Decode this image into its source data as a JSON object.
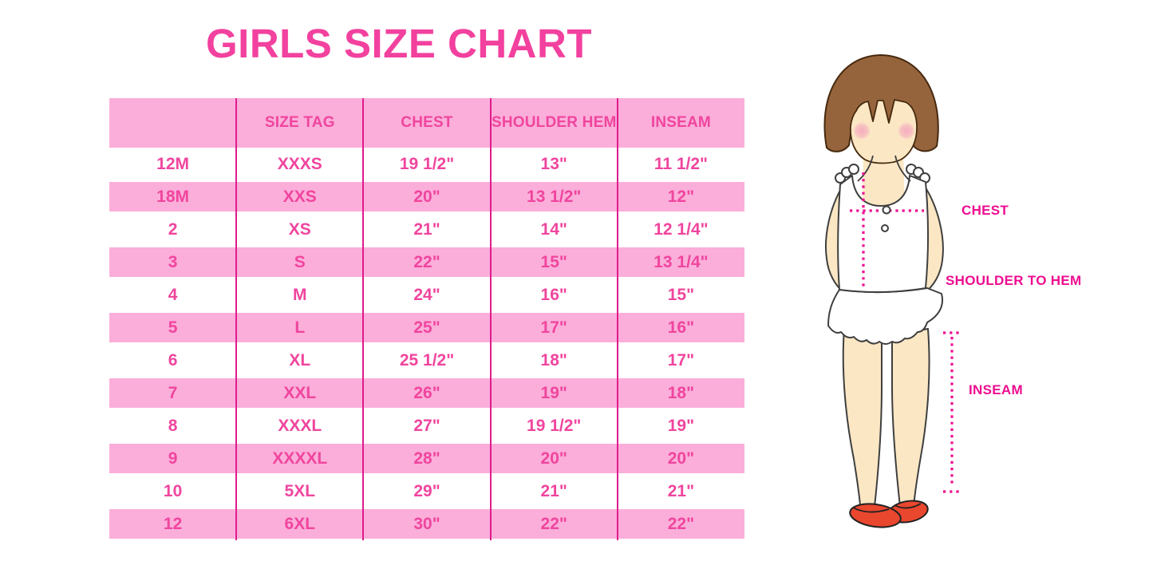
{
  "chart_data": {
    "type": "table",
    "title": "GIRLS SIZE CHART",
    "columns": [
      "",
      "SIZE TAG",
      "CHEST",
      "SHOULDER HEM",
      "INSEAM"
    ],
    "rows": [
      [
        "12M",
        "XXXS",
        "19 1/2\"",
        "13\"",
        "11 1/2\""
      ],
      [
        "18M",
        "XXS",
        "20\"",
        "13 1/2\"",
        "12\""
      ],
      [
        "2",
        "XS",
        "21\"",
        "14\"",
        "12 1/4\""
      ],
      [
        "3",
        "S",
        "22\"",
        "15\"",
        "13 1/4\""
      ],
      [
        "4",
        "M",
        "24\"",
        "16\"",
        "15\""
      ],
      [
        "5",
        "L",
        "25\"",
        "17\"",
        "16\""
      ],
      [
        "6",
        "XL",
        "25 1/2\"",
        "18\"",
        "17\""
      ],
      [
        "7",
        "XXL",
        "26\"",
        "19\"",
        "18\""
      ],
      [
        "8",
        "XXXL",
        "27\"",
        "19 1/2\"",
        "19\""
      ],
      [
        "9",
        "XXXXL",
        "28\"",
        "20\"",
        "20\""
      ],
      [
        "10",
        "5XL",
        "29\"",
        "21\"",
        "21\""
      ],
      [
        "12",
        "6XL",
        "30\"",
        "22\"",
        "22\""
      ]
    ],
    "row_banding": "alternating white/pink starting white",
    "legend_position": "none",
    "grid": "vertical magenta dividers only"
  },
  "figure": {
    "labels": {
      "chest": "CHEST",
      "shoulder_to_hem": "SHOULDER TO HEM",
      "inseam": "INSEAM"
    }
  },
  "theme": {
    "title-color": "#F2419E",
    "band-pink": "#FBAEDA",
    "divider": "#DF1B8C",
    "cell-text": "#F0459E",
    "label-color": "#EE0D90",
    "hair": "#96643C",
    "hair-outline": "#46290F",
    "skin": "#FBE7C4",
    "outline": "#3F3F3F",
    "blush": "#F5A9BE",
    "shoe": "#E9472E"
  }
}
